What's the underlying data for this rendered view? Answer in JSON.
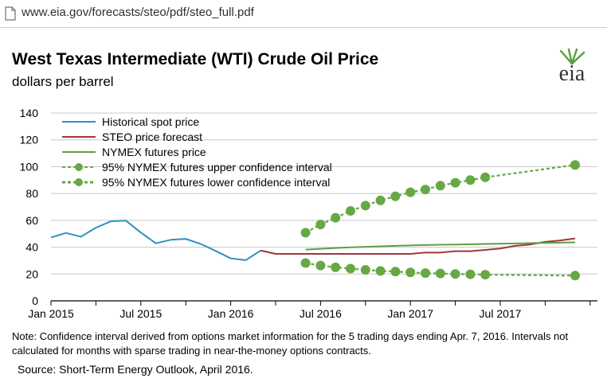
{
  "browser": {
    "url": "www.eia.gov/forecasts/steo/pdf/steo_full.pdf"
  },
  "header": {
    "title": "West Texas Intermediate (WTI) Crude Oil Price",
    "subtitle": "dollars per barrel",
    "logo_text": "eia"
  },
  "footer": {
    "note": "Note: Confidence interval derived from options market information for the 5 trading days ending Apr. 7, 2016. Intervals not calculated for months with sparse trading in near-the-money options contracts.",
    "source": "Source: Short-Term Energy Outlook, April 2016."
  },
  "colors": {
    "historical": "#2f8fc6",
    "steo": "#a0363b",
    "nymex": "#5f9e45",
    "ci": "#67a844",
    "grid": "#c8c8c8"
  },
  "chart_data": {
    "type": "line",
    "title": "West Texas Intermediate (WTI) Crude Oil Price",
    "ylabel": "dollars per barrel",
    "xlabel": "",
    "ylim": [
      0,
      140
    ],
    "yticks": [
      0,
      20,
      40,
      60,
      80,
      100,
      120,
      140
    ],
    "x_tick_labels": [
      "Jan 2015",
      "Jul 2015",
      "Jan 2016",
      "Jul 2016",
      "Jan 2017",
      "Jul 2017"
    ],
    "x_range": [
      "2015-01",
      "2017-12"
    ],
    "grid": true,
    "legend_position": "top-left",
    "series": [
      {
        "name": "Historical spot price",
        "style": "solid",
        "x": [
          "2015-01",
          "2015-02",
          "2015-03",
          "2015-04",
          "2015-05",
          "2015-06",
          "2015-07",
          "2015-08",
          "2015-09",
          "2015-10",
          "2015-11",
          "2015-12",
          "2016-01",
          "2016-02",
          "2016-03"
        ],
        "values": [
          47.2,
          50.6,
          47.8,
          54.5,
          59.3,
          59.8,
          50.9,
          42.9,
          45.5,
          46.2,
          42.4,
          37.2,
          31.7,
          30.3,
          37.5
        ]
      },
      {
        "name": "STEO price forecast",
        "style": "solid",
        "x": [
          "2016-03",
          "2016-04",
          "2016-05",
          "2016-06",
          "2016-07",
          "2016-08",
          "2016-09",
          "2016-10",
          "2016-11",
          "2016-12",
          "2017-01",
          "2017-02",
          "2017-03",
          "2017-04",
          "2017-05",
          "2017-06",
          "2017-07",
          "2017-08",
          "2017-09",
          "2017-10",
          "2017-11",
          "2017-12"
        ],
        "values": [
          37.5,
          35,
          35,
          35,
          35,
          35,
          35,
          35,
          35,
          35,
          35,
          36,
          36,
          37,
          37,
          38,
          39,
          41,
          42,
          44,
          45,
          46.5
        ]
      },
      {
        "name": "NYMEX futures price",
        "style": "solid",
        "x": [
          "2016-06",
          "2016-07",
          "2016-08",
          "2016-09",
          "2016-10",
          "2016-11",
          "2016-12",
          "2017-01",
          "2017-02",
          "2017-03",
          "2017-04",
          "2017-05",
          "2017-06",
          "2017-07",
          "2017-08",
          "2017-09",
          "2017-10",
          "2017-11",
          "2017-12"
        ],
        "values": [
          38.2,
          38.8,
          39.4,
          39.9,
          40.3,
          40.6,
          41.0,
          41.3,
          41.6,
          41.8,
          42.0,
          42.2,
          42.4,
          42.6,
          42.8,
          43.0,
          43.2,
          43.4,
          43.6
        ]
      },
      {
        "name": "95% NYMEX futures upper confidence interval",
        "style": "dashed-markers",
        "x": [
          "2016-06",
          "2016-07",
          "2016-08",
          "2016-09",
          "2016-10",
          "2016-11",
          "2016-12",
          "2017-01",
          "2017-02",
          "2017-03",
          "2017-04",
          "2017-05",
          "2017-06",
          "2017-12"
        ],
        "values": [
          50.8,
          56.9,
          61.9,
          67.0,
          71.0,
          74.9,
          77.9,
          80.9,
          83.0,
          85.9,
          88.0,
          90.0,
          92.1,
          101.3
        ]
      },
      {
        "name": "95% NYMEX futures lower confidence interval",
        "style": "dashed-markers",
        "x": [
          "2016-06",
          "2016-07",
          "2016-08",
          "2016-09",
          "2016-10",
          "2016-11",
          "2016-12",
          "2017-01",
          "2017-02",
          "2017-03",
          "2017-04",
          "2017-05",
          "2017-06",
          "2017-12"
        ],
        "values": [
          28.2,
          26.3,
          25.0,
          24.0,
          23.1,
          22.3,
          21.8,
          21.2,
          20.7,
          20.4,
          20.0,
          19.8,
          19.5,
          18.8
        ]
      }
    ]
  }
}
